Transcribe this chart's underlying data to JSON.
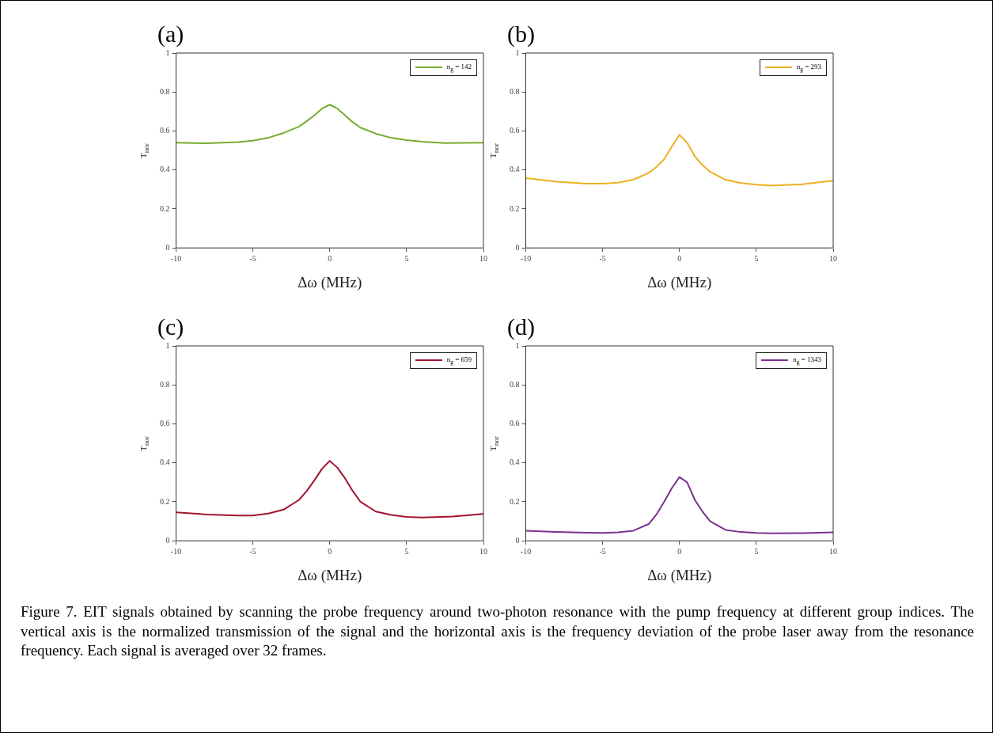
{
  "chart_data": [
    {
      "type": "line",
      "title": "(a)",
      "xlabel": "Δω (MHz)",
      "ylabel": "T$_{nor}$",
      "xlim": [
        -10,
        10
      ],
      "xticks": [
        -10,
        -5,
        0,
        5,
        10
      ],
      "ylim": [
        0,
        1
      ],
      "yticks": [
        0,
        0.2,
        0.4,
        0.6,
        0.8,
        1
      ],
      "grid": false,
      "legend": "top right",
      "marker": "none",
      "series": [
        {
          "name": "n$_{g}$ = 142",
          "color": "#77ac30",
          "x": [
            -10,
            -8,
            -6,
            -5,
            -4,
            -3,
            -2,
            -1.5,
            -1,
            -0.5,
            0,
            0.5,
            1,
            1.5,
            2,
            3,
            4,
            5,
            6,
            7.5,
            10
          ],
          "values": [
            0.54,
            0.537,
            0.543,
            0.55,
            0.565,
            0.59,
            0.623,
            0.65,
            0.68,
            0.715,
            0.735,
            0.715,
            0.68,
            0.645,
            0.617,
            0.586,
            0.565,
            0.553,
            0.545,
            0.538,
            0.54
          ]
        }
      ]
    },
    {
      "type": "line",
      "title": "(b)",
      "xlabel": "Δω (MHz)",
      "ylabel": "T$_{nor}$",
      "xlim": [
        -10,
        10
      ],
      "xticks": [
        -10,
        -5,
        0,
        5,
        10
      ],
      "ylim": [
        0,
        1
      ],
      "yticks": [
        0,
        0.2,
        0.4,
        0.6,
        0.8,
        1
      ],
      "grid": false,
      "legend": "top right",
      "marker": "none",
      "series": [
        {
          "name": "n$_{g}$ = 293",
          "color": "#edb120",
          "x": [
            -10,
            -8,
            -6,
            -5,
            -4,
            -3,
            -2,
            -1.5,
            -1,
            -0.5,
            0,
            0.5,
            1,
            1.5,
            2,
            3,
            4,
            5,
            6,
            8,
            10
          ],
          "values": [
            0.358,
            0.34,
            0.33,
            0.33,
            0.335,
            0.35,
            0.385,
            0.415,
            0.455,
            0.52,
            0.58,
            0.54,
            0.47,
            0.425,
            0.39,
            0.35,
            0.333,
            0.325,
            0.32,
            0.327,
            0.345
          ]
        }
      ]
    },
    {
      "type": "line",
      "title": "(c)",
      "xlabel": "Δω (MHz)",
      "ylabel": "T$_{nor}$",
      "xlim": [
        -10,
        10
      ],
      "xticks": [
        -10,
        -5,
        0,
        5,
        10
      ],
      "ylim": [
        0,
        1
      ],
      "yticks": [
        0,
        0.2,
        0.4,
        0.6,
        0.8,
        1
      ],
      "grid": false,
      "legend": "top right",
      "marker": "none",
      "series": [
        {
          "name": "n$_{g}$ = 659",
          "color": "#a2142f",
          "x": [
            -10,
            -8,
            -6,
            -5,
            -4,
            -3,
            -2,
            -1.5,
            -1,
            -0.5,
            0,
            0.5,
            1,
            1.5,
            2,
            3,
            4,
            5,
            6,
            8,
            10
          ],
          "values": [
            0.146,
            0.135,
            0.13,
            0.13,
            0.14,
            0.16,
            0.21,
            0.255,
            0.31,
            0.37,
            0.41,
            0.375,
            0.32,
            0.255,
            0.2,
            0.15,
            0.133,
            0.123,
            0.12,
            0.125,
            0.138
          ]
        }
      ]
    },
    {
      "type": "line",
      "title": "(d)",
      "xlabel": "Δω (MHz)",
      "ylabel": "T$_{nor}$",
      "xlim": [
        -10,
        10
      ],
      "xticks": [
        -10,
        -5,
        0,
        5,
        10
      ],
      "ylim": [
        0,
        1
      ],
      "yticks": [
        0,
        0.2,
        0.4,
        0.6,
        0.8,
        1
      ],
      "grid": false,
      "legend": "top right",
      "marker": "none",
      "annotations": [
        "Figure 7. EIT signals obtained by scanning the probe frequency around two-photon resonance with the pump frequency at different group indices. The vertical axis is the normalized transmission of the signal and the horizontal axis is the frequency deviation of the probe laser away from the resonance frequency. Each signal is averaged over 32 frames."
      ],
      "series": [
        {
          "name": "n$_{g}$ = 1343",
          "color": "#7e2f8e",
          "x": [
            -10,
            -8,
            -6,
            -5,
            -4,
            -3,
            -2,
            -1.5,
            -1,
            -0.5,
            0,
            0.5,
            1,
            1.5,
            2,
            3,
            4,
            5,
            6,
            8,
            10
          ],
          "values": [
            0.052,
            0.045,
            0.041,
            0.04,
            0.043,
            0.052,
            0.086,
            0.135,
            0.2,
            0.27,
            0.327,
            0.3,
            0.21,
            0.15,
            0.1,
            0.056,
            0.045,
            0.04,
            0.038,
            0.039,
            0.043
          ]
        }
      ]
    }
  ]
}
